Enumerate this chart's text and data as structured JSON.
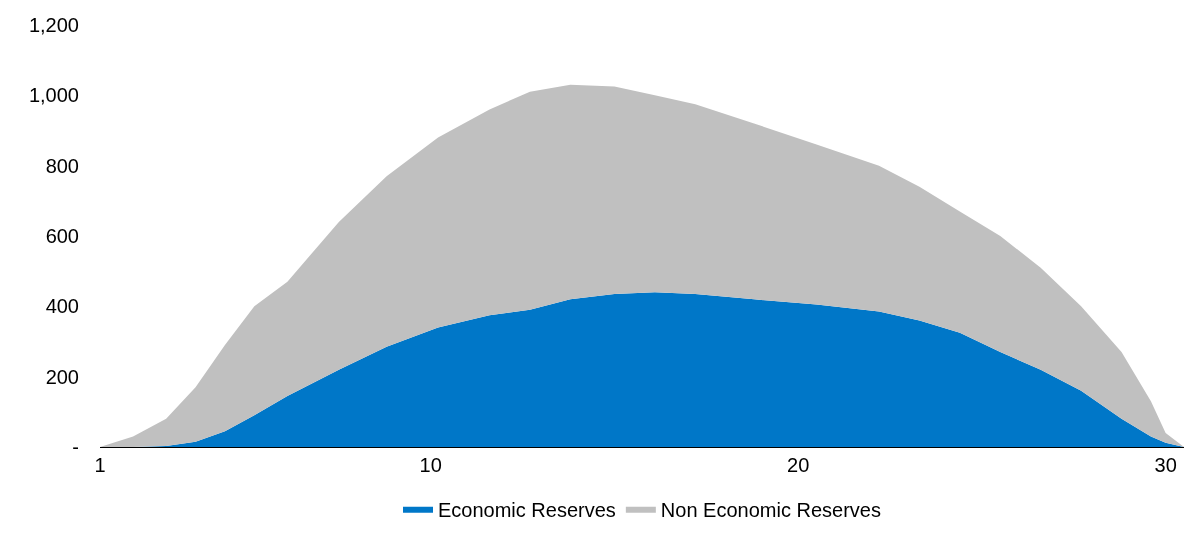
{
  "chart_data": {
    "type": "area",
    "stacked": true,
    "x": [
      1,
      1.9,
      2.8,
      3.6,
      4.4,
      5.2,
      6.1,
      7.5,
      8.8,
      10.2,
      11.6,
      12.7,
      13.8,
      15,
      16.1,
      17.2,
      18.8,
      20.5,
      22.2,
      23.3,
      24.4,
      25.5,
      26.6,
      27.7,
      28.8,
      29.6,
      30,
      30.5
    ],
    "series": [
      {
        "name": "Economic Reserves",
        "color": "#0077c8",
        "values": [
          0,
          0,
          3,
          15,
          45,
          90,
          145,
          220,
          285,
          340,
          375,
          390,
          420,
          435,
          440,
          435,
          420,
          405,
          385,
          360,
          325,
          270,
          220,
          160,
          80,
          30,
          12,
          0
        ]
      },
      {
        "name": "Non Economic Reserves",
        "color": "#c0c0c0",
        "values": [
          0,
          30,
          77,
          155,
          245,
          310,
          325,
          420,
          485,
          540,
          585,
          620,
          610,
          590,
          560,
          540,
          500,
          455,
          415,
          380,
          345,
          330,
          290,
          240,
          190,
          100,
          28,
          0
        ]
      }
    ],
    "xlim": [
      1,
      30.5
    ],
    "xticks": [
      1,
      10,
      20,
      30
    ],
    "ylim": [
      0,
      1200
    ],
    "yticks": [
      {
        "value": 0,
        "label": "-"
      },
      {
        "value": 200,
        "label": "200"
      },
      {
        "value": 400,
        "label": "400"
      },
      {
        "value": 600,
        "label": "600"
      },
      {
        "value": 800,
        "label": "800"
      },
      {
        "value": 1000,
        "label": "1,000"
      },
      {
        "value": 1200,
        "label": "1,200"
      }
    ],
    "legend": "bottom"
  }
}
